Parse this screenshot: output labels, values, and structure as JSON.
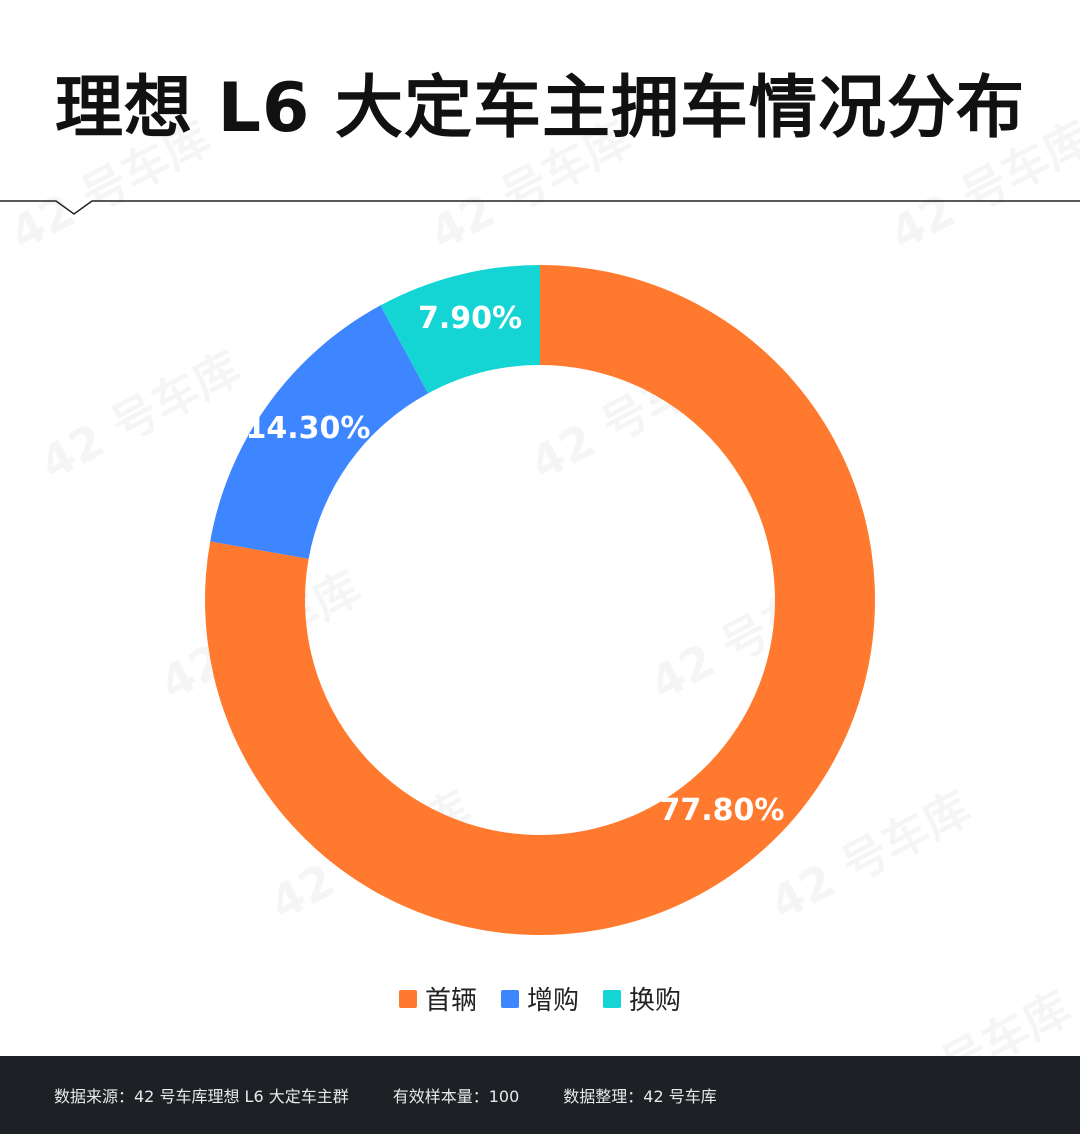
{
  "header": {
    "title": "理想 L6 大定车主拥车情况分布"
  },
  "watermark": {
    "text": "42 号车库"
  },
  "chart_data": {
    "type": "pie",
    "variant": "donut",
    "categories": [
      "首辆",
      "增购",
      "换购"
    ],
    "values": [
      77.8,
      14.3,
      7.9
    ],
    "labels": [
      "77.80%",
      "14.30%",
      "7.90%"
    ],
    "colors": [
      "#ff7a2f",
      "#3d86ff",
      "#14d4d4"
    ],
    "legend_position": "bottom-center"
  },
  "footer": {
    "source": "数据来源：42 号车库理想 L6 大定车主群",
    "sample": "有效样本量：100",
    "compiled": "数据整理：42 号车库"
  }
}
